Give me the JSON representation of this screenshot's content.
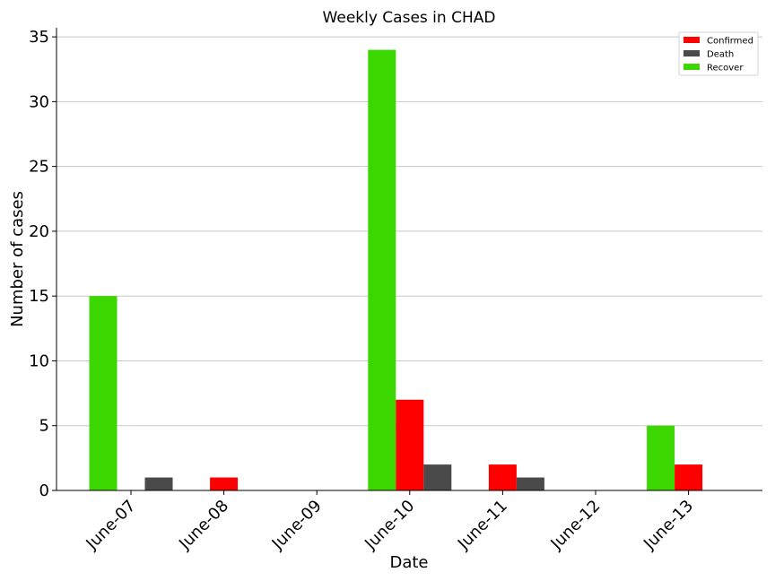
{
  "chart_data": {
    "type": "bar",
    "title": "Weekly Cases in CHAD",
    "xlabel": "Date",
    "ylabel": "Number of cases",
    "categories": [
      "June-07",
      "June-08",
      "June-09",
      "June-10",
      "June-11",
      "June-12",
      "June-13"
    ],
    "series": [
      {
        "name": "Recover",
        "color": "#3cd700",
        "values": [
          15,
          0,
          0,
          34,
          0,
          0,
          5
        ]
      },
      {
        "name": "Confirmed",
        "color": "#ff0000",
        "values": [
          0,
          1,
          0,
          7,
          2,
          0,
          2
        ]
      },
      {
        "name": "Death",
        "color": "#4a4a4a",
        "values": [
          1,
          0,
          0,
          2,
          1,
          0,
          0
        ]
      }
    ],
    "legend_order": [
      "Confirmed",
      "Death",
      "Recover"
    ],
    "yticks": [
      0,
      5,
      10,
      15,
      20,
      25,
      30,
      35
    ],
    "ylim": [
      0,
      35.7
    ],
    "grid": "y",
    "legend_position": "top-right"
  }
}
